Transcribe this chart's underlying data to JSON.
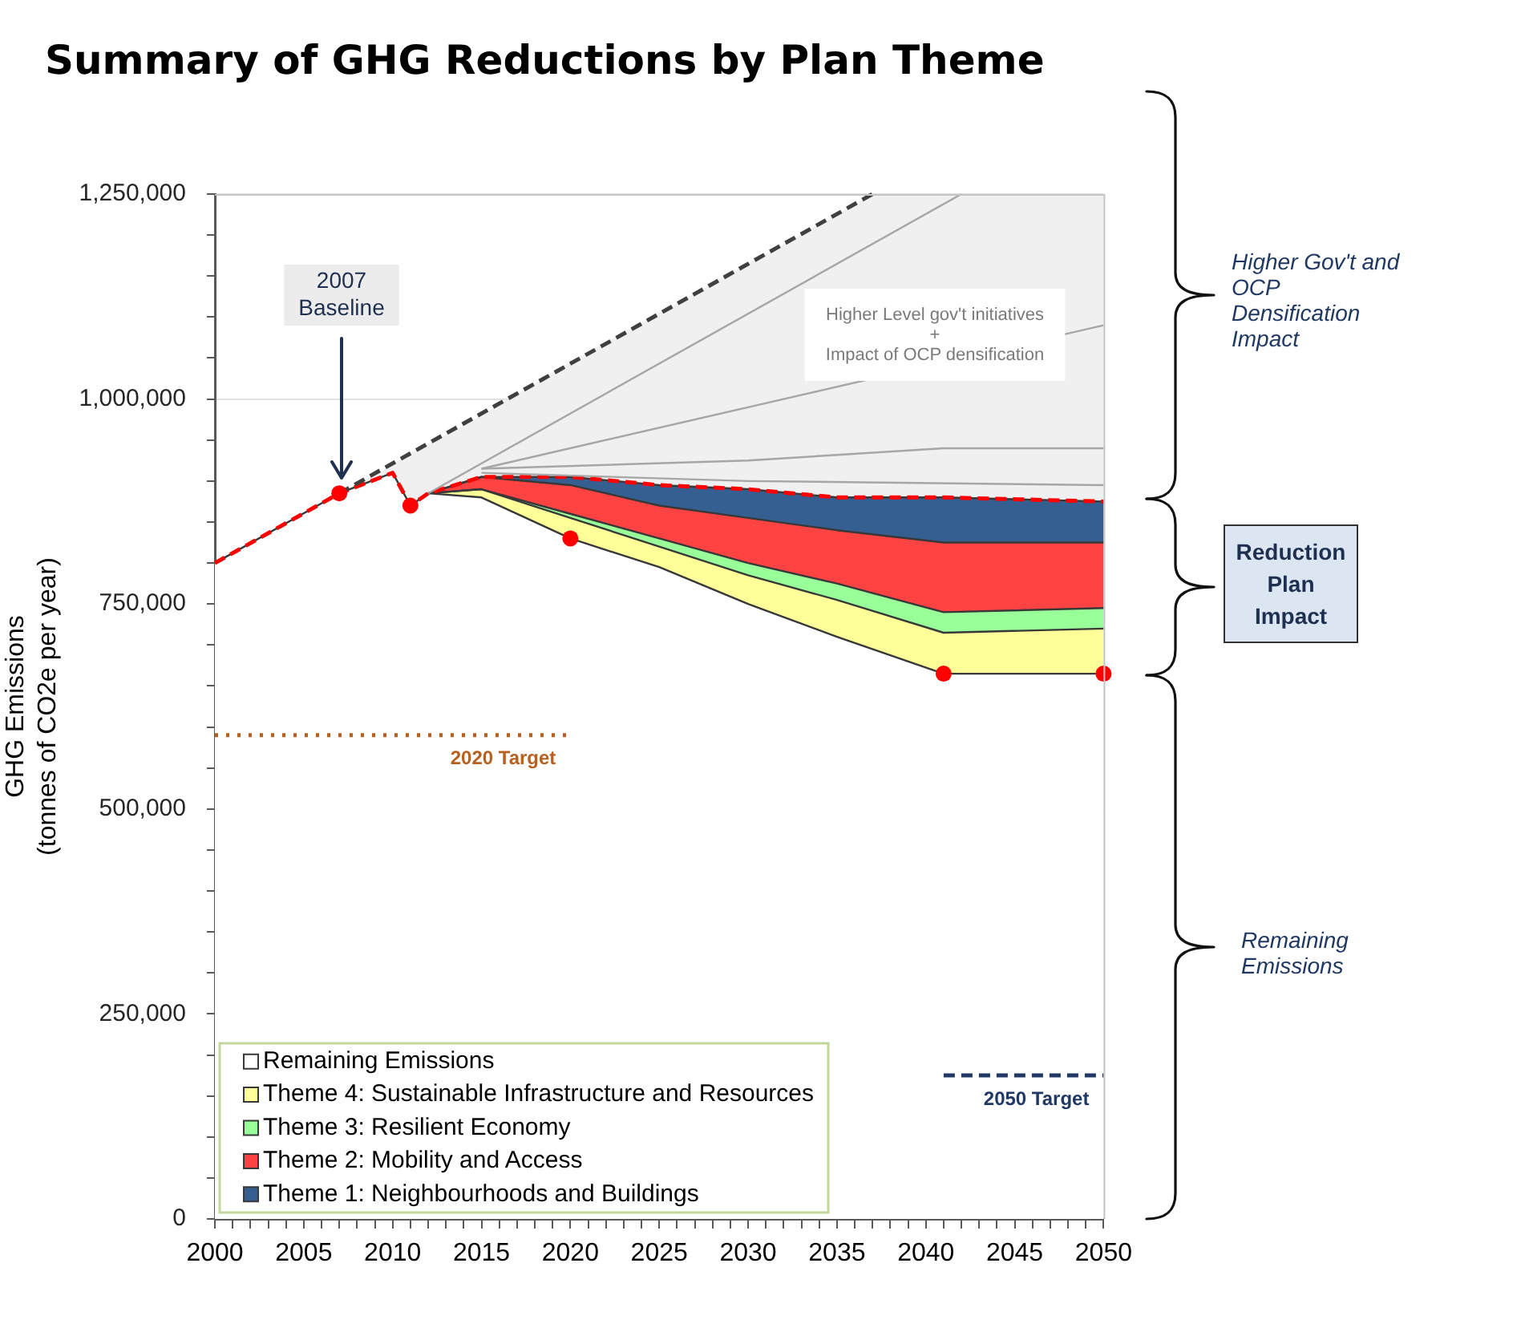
{
  "chart_data": {
    "type": "area",
    "stacked": true,
    "title": "Summary of GHG Reductions by Plan Theme",
    "ylabel": "GHG Emissions\n(tonnes of CO2e per year)",
    "x": [
      2000,
      2007,
      2010,
      2011,
      2012,
      2015,
      2020,
      2025,
      2030,
      2035,
      2041,
      2050
    ],
    "xlim": [
      2000,
      2050
    ],
    "xticks": [
      2000,
      {
        "value": 2001,
        "label": null
      },
      {
        "value": 2002,
        "label": null
      },
      {
        "value": 2003,
        "label": null
      },
      {
        "value": 2004,
        "label": null
      },
      2005,
      {
        "value": 2006,
        "label": null
      },
      {
        "value": 2007,
        "label": null
      },
      {
        "value": 2008,
        "label": null
      },
      {
        "value": 2009,
        "label": null
      },
      2010,
      {
        "value": 2011,
        "label": null
      },
      {
        "value": 2012,
        "label": null
      },
      {
        "value": 2013,
        "label": null
      },
      {
        "value": 2014,
        "label": null
      },
      2015,
      {
        "value": 2016,
        "label": null
      },
      {
        "value": 2017,
        "label": null
      },
      {
        "value": 2018,
        "label": null
      },
      {
        "value": 2019,
        "label": null
      },
      2020,
      {
        "value": 2021,
        "label": null
      },
      {
        "value": 2022,
        "label": null
      },
      {
        "value": 2023,
        "label": null
      },
      {
        "value": 2024,
        "label": null
      },
      2025,
      {
        "value": 2026,
        "label": null
      },
      {
        "value": 2027,
        "label": null
      },
      {
        "value": 2028,
        "label": null
      },
      {
        "value": 2029,
        "label": null
      },
      2030,
      {
        "value": 2031,
        "label": null
      },
      {
        "value": 2032,
        "label": null
      },
      {
        "value": 2033,
        "label": null
      },
      {
        "value": 2034,
        "label": null
      },
      2035,
      {
        "value": 2036,
        "label": null
      },
      {
        "value": 2037,
        "label": null
      },
      {
        "value": 2038,
        "label": null
      },
      {
        "value": 2039,
        "label": null
      },
      2040,
      {
        "value": 2041,
        "label": null
      },
      {
        "value": 2042,
        "label": null
      },
      {
        "value": 2043,
        "label": null
      },
      {
        "value": 2044,
        "label": null
      },
      2045,
      {
        "value": 2046,
        "label": null
      },
      {
        "value": 2047,
        "label": null
      },
      {
        "value": 2048,
        "label": null
      },
      {
        "value": 2049,
        "label": null
      },
      2050
    ],
    "ylim": [
      0,
      1250000
    ],
    "yticks": [
      0,
      {
        "value": 50000,
        "label": null
      },
      {
        "value": 100000,
        "label": null
      },
      {
        "value": 150000,
        "label": null
      },
      {
        "value": 200000,
        "label": null
      },
      {
        "value": 250000,
        "label": "250,000"
      },
      {
        "value": 300000,
        "label": null
      },
      {
        "value": 350000,
        "label": null
      },
      {
        "value": 400000,
        "label": null
      },
      {
        "value": 450000,
        "label": null
      },
      {
        "value": 500000,
        "label": "500,000"
      },
      {
        "value": 550000,
        "label": null
      },
      {
        "value": 600000,
        "label": null
      },
      {
        "value": 650000,
        "label": null
      },
      {
        "value": 700000,
        "label": null
      },
      {
        "value": 750000,
        "label": "750,000"
      },
      {
        "value": 800000,
        "label": null
      },
      {
        "value": 850000,
        "label": null
      },
      {
        "value": 900000,
        "label": null
      },
      {
        "value": 950000,
        "label": null
      },
      {
        "value": 1000000,
        "label": "1,000,000"
      },
      {
        "value": 1050000,
        "label": null
      },
      {
        "value": 1100000,
        "label": null
      },
      {
        "value": 1150000,
        "label": null
      },
      {
        "value": 1200000,
        "label": null
      },
      {
        "value": 1250000,
        "label": "1,250,000"
      }
    ],
    "grid": "y",
    "legend": "bottom left",
    "series": [
      {
        "name": "Remaining Emissions",
        "type": "area",
        "color": "#ffffff",
        "values": [
          800000,
          885000,
          910000,
          870000,
          885000,
          880000,
          830000,
          795000,
          750000,
          710000,
          665000,
          665000
        ]
      },
      {
        "name": "Theme 4: Sustainable Infrastructure and Resources",
        "type": "area",
        "color": "#ffff99",
        "values": [
          null,
          null,
          null,
          null,
          0,
          10000,
          25000,
          25000,
          35000,
          45000,
          50000,
          55000
        ]
      },
      {
        "name": "Theme 3: Resilient Economy",
        "type": "area",
        "color": "#99ff99",
        "values": [
          null,
          null,
          null,
          null,
          0,
          0,
          5000,
          10000,
          15000,
          20000,
          25000,
          25000
        ]
      },
      {
        "name": "Theme 2: Mobility and Access",
        "type": "area",
        "color": "#ff4343",
        "values": [
          null,
          null,
          null,
          null,
          0,
          15000,
          35000,
          40000,
          55000,
          65000,
          85000,
          80000
        ]
      },
      {
        "name": "Theme 1: Neighbourhoods and Buildings",
        "type": "area",
        "color": "#355f91",
        "values": [
          null,
          null,
          null,
          null,
          0,
          0,
          10000,
          25000,
          35000,
          40000,
          55000,
          50000
        ]
      },
      {
        "type": "line",
        "color": "#a6a6a6",
        "x": [
          2012,
          2042
        ],
        "values": [
          885000,
          1250000
        ]
      },
      {
        "type": "line",
        "color": "#a6a6a6",
        "x": [
          2015,
          2030,
          2050
        ],
        "values": [
          915000,
          990000,
          1090000
        ]
      },
      {
        "type": "line",
        "color": "#a6a6a6",
        "x": [
          2015,
          2030,
          2041,
          2050
        ],
        "values": [
          915000,
          925000,
          940000,
          940000
        ]
      },
      {
        "type": "line",
        "color": "#a6a6a6",
        "x": [
          2015,
          2030,
          2050
        ],
        "values": [
          910000,
          900000,
          895000
        ]
      },
      {
        "type": "line",
        "color": "#404040",
        "line_style": "dashed",
        "x": [
          2007,
          2037
        ],
        "values": [
          885000,
          1250000
        ]
      },
      {
        "type": "line",
        "color": "#ff0000",
        "line_style": "dashed",
        "x": [
          2000,
          2007,
          2010,
          2011,
          2012,
          2015,
          2020,
          2025,
          2030,
          2035,
          2037,
          2041,
          2050
        ],
        "values": [
          800000,
          885000,
          910000,
          870000,
          885000,
          905000,
          905000,
          895000,
          890000,
          880000,
          880000,
          880000,
          875000
        ],
        "lower": [
          800000,
          885000,
          910000,
          870000,
          885000,
          905000,
          905000,
          895000,
          890000,
          880000,
          880000,
          880000,
          875000
        ],
        "upper": [
          800000,
          885000,
          920000,
          935000,
          945000,
          980000,
          1045000,
          1105000,
          1165000,
          1225000,
          1250000,
          1250000,
          1250000
        ]
      },
      {
        "name": "2020 Target",
        "type": "line",
        "color": "#b8601f",
        "line_style": "dotted",
        "x": [
          2000,
          2020
        ],
        "values": [
          590000,
          590000
        ]
      },
      {
        "name": "2050 Target",
        "type": "line",
        "color": "#1f3864",
        "line_style": "dashed",
        "x": [
          2041,
          2050
        ],
        "values": [
          175000,
          175000
        ]
      },
      {
        "type": "scatter",
        "color": "#ff0000",
        "marker": "circle",
        "x": [
          2007,
          2011,
          2020,
          2041,
          2050
        ],
        "values": [
          885000,
          870000,
          830000,
          665000,
          665000
        ]
      }
    ],
    "annotations": [
      "2007\nBaseline",
      "Higher Level gov't initiatives\n+\nImpact of OCP densification",
      "Higher Gov't and\nOCP\nDensification\nImpact",
      "Reduction\nPlan\nImpact",
      "Remaining\nEmissions"
    ]
  }
}
